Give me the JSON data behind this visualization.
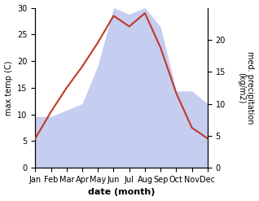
{
  "months": [
    "Jan",
    "Feb",
    "Mar",
    "Apr",
    "May",
    "Jun",
    "Jul",
    "Aug",
    "Sep",
    "Oct",
    "Nov",
    "Dec"
  ],
  "temperature": [
    5.5,
    10.5,
    15.0,
    19.0,
    23.5,
    28.5,
    26.5,
    29.0,
    22.5,
    14.0,
    7.5,
    5.5
  ],
  "precipitation": [
    8,
    8,
    9,
    10,
    16,
    25,
    24,
    25,
    22,
    12,
    12,
    10
  ],
  "temp_color": "#c0392b",
  "precip_fill_color": "#c5cdf0",
  "ylabel_left": "max temp (C)",
  "ylabel_right": "med. precipitation\n(kg/m2)",
  "xlabel": "date (month)",
  "ylim_left": [
    0,
    30
  ],
  "ylim_right": [
    0,
    25
  ],
  "right_yticks": [
    0,
    5,
    10,
    15,
    20
  ],
  "left_yticks": [
    0,
    5,
    10,
    15,
    20,
    25,
    30
  ],
  "tick_fontsize": 7,
  "label_fontsize": 8
}
